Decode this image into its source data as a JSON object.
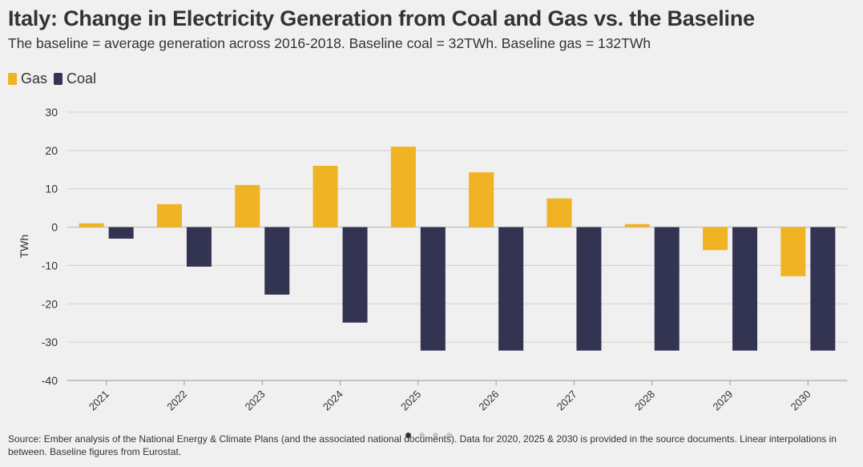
{
  "header": {
    "title": "Italy: Change in Electricity Generation from Coal and Gas vs. the Baseline",
    "subtitle": "The baseline = average generation across 2016-2018. Baseline coal = 32TWh. Baseline gas = 132TWh"
  },
  "legend": {
    "items": [
      {
        "label": "Gas",
        "color": "#f0b323"
      },
      {
        "label": "Coal",
        "color": "#333352"
      }
    ]
  },
  "footer": {
    "source": "Source: Ember analysis of the National Energy & Climate Plans (and the associated national documents). Data for 2020, 2025 & 2030 is provided in the source documents. Linear interpolations in between. Baseline figures from Eurostat."
  },
  "chart_data": {
    "type": "bar",
    "title": "Italy: Change in Electricity Generation from Coal and Gas vs. the Baseline",
    "subtitle": "The baseline = average generation across 2016-2018. Baseline coal = 32TWh. Baseline gas = 132TWh",
    "xlabel": "",
    "ylabel": "TWh",
    "ylim": [
      -40,
      30
    ],
    "yticks": [
      30,
      20,
      10,
      0,
      -10,
      -20,
      -30,
      -40
    ],
    "grid": true,
    "legend_position": "top-left",
    "categories": [
      "2021",
      "2022",
      "2023",
      "2024",
      "2025",
      "2026",
      "2027",
      "2028",
      "2029",
      "2030"
    ],
    "series": [
      {
        "name": "Gas",
        "color": "#f0b323",
        "values": [
          1,
          6,
          11,
          16,
          21,
          14.3,
          7.5,
          0.8,
          -6,
          -12.8
        ]
      },
      {
        "name": "Coal",
        "color": "#333352",
        "values": [
          -3,
          -10.3,
          -17.6,
          -24.9,
          -32.2,
          -32.2,
          -32.2,
          -32.2,
          -32.2,
          -32.2
        ]
      }
    ]
  },
  "pagination": {
    "pages": 4,
    "active": 1
  }
}
